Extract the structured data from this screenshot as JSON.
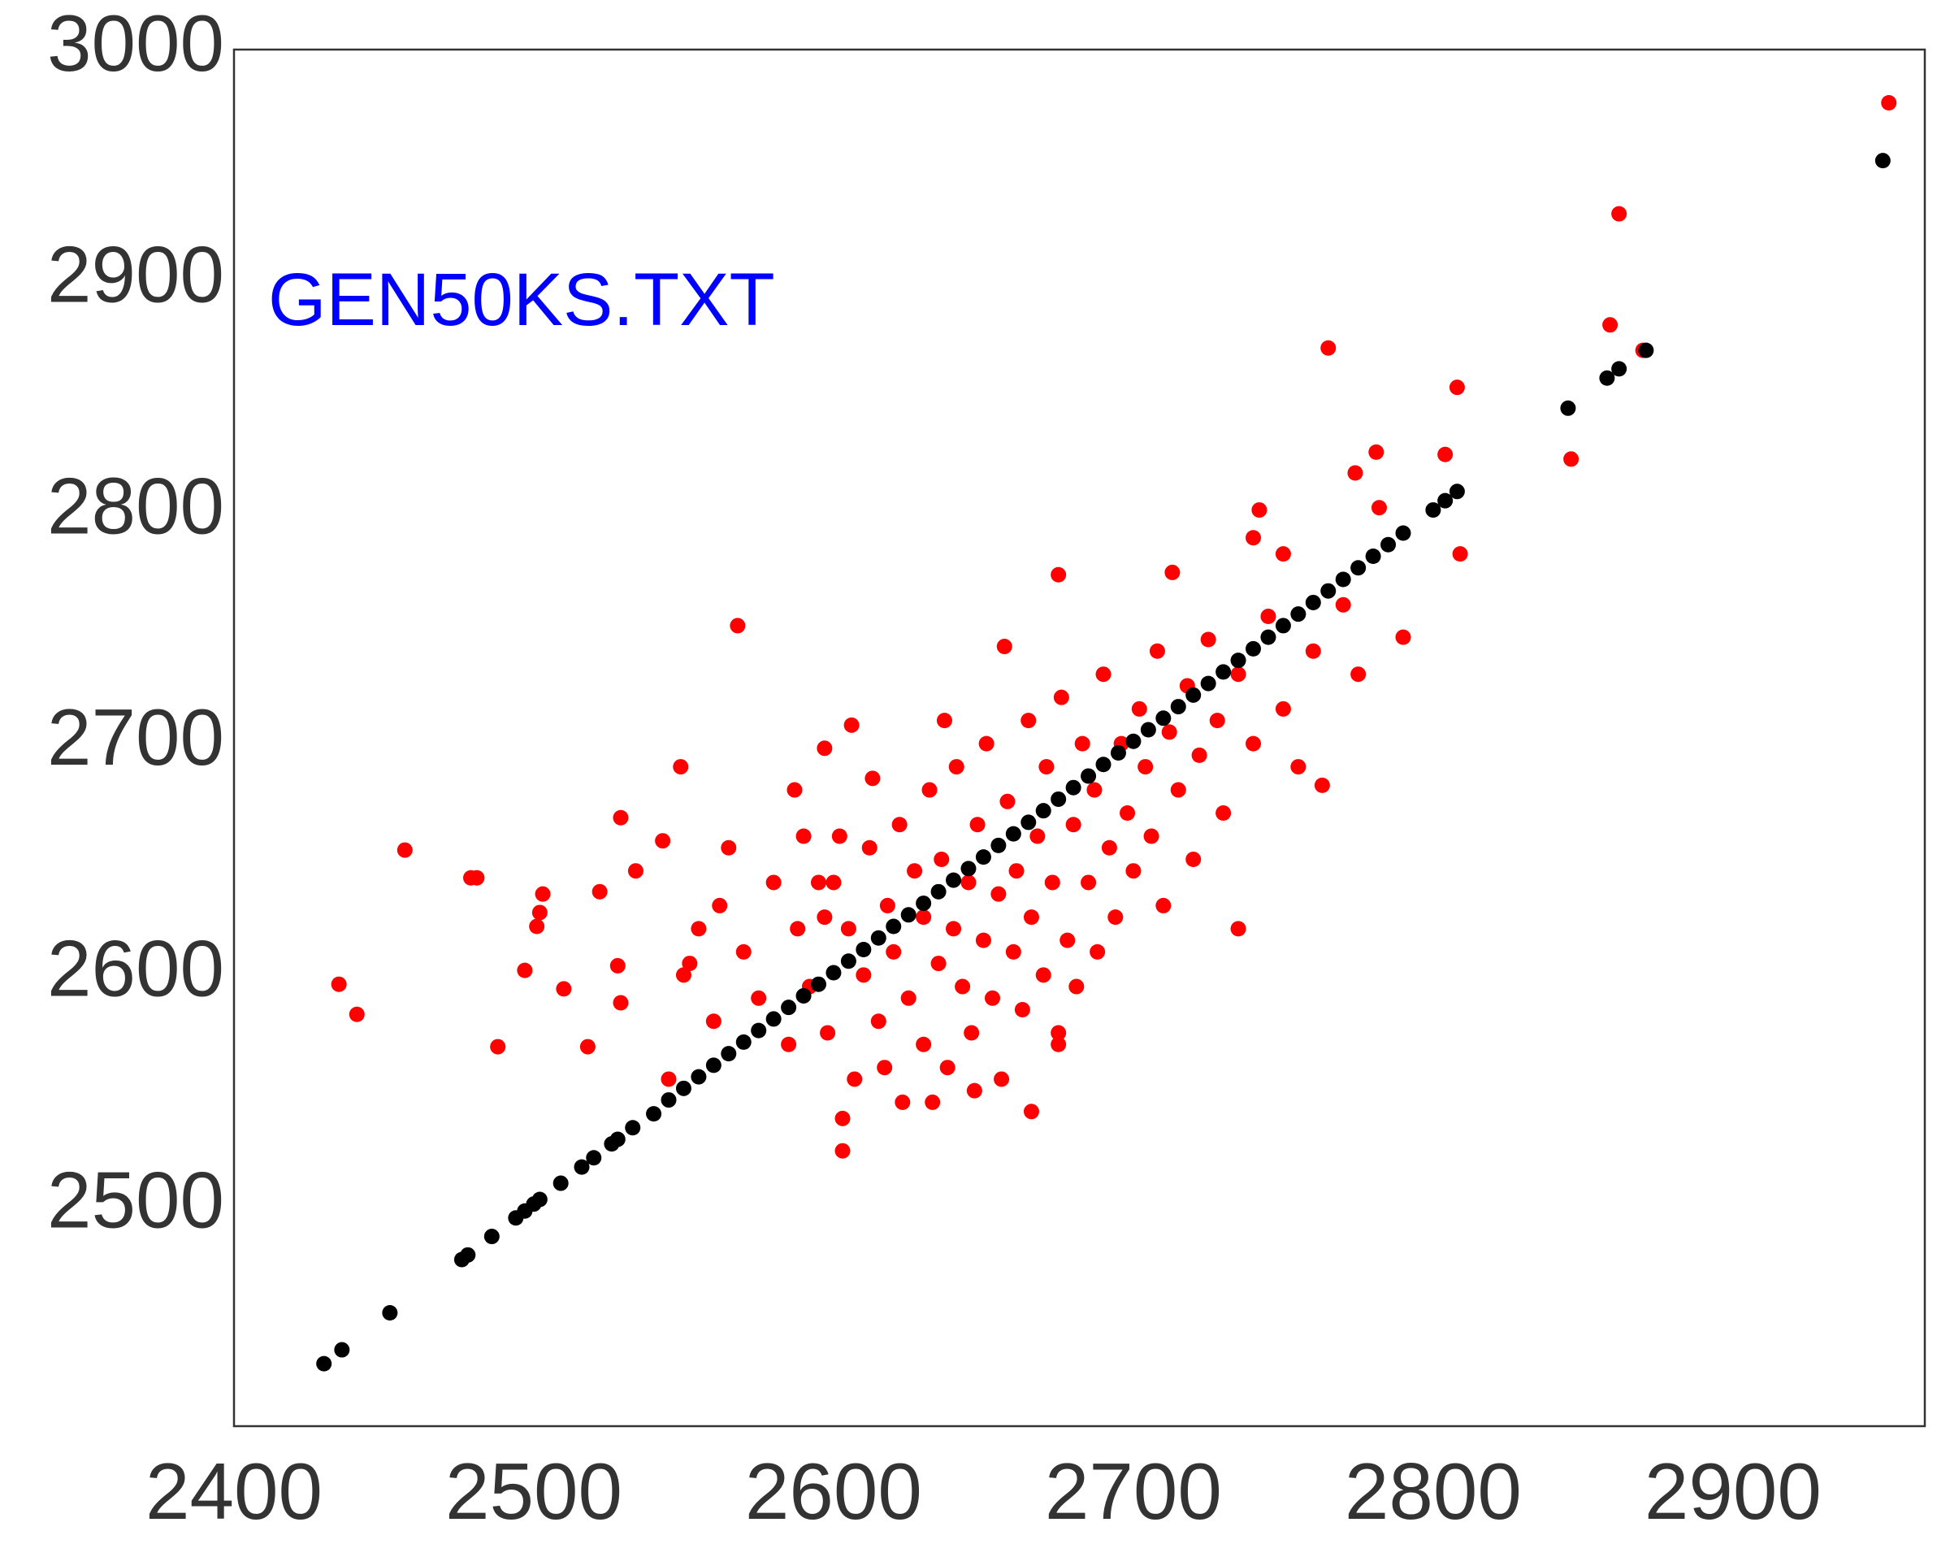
{
  "chart_data": {
    "type": "scatter",
    "annotation": "GEN50KS.TXT",
    "xlim": [
      2400,
      2964
    ],
    "ylim": [
      2405,
      3000
    ],
    "xticks": [
      2400,
      2500,
      2600,
      2700,
      2800,
      2900
    ],
    "yticks": [
      2500,
      2600,
      2700,
      2800,
      2900,
      3000
    ],
    "grid": false,
    "series": [
      {
        "color": "#ff0000",
        "x": [
          2435,
          2441,
          2457,
          2479,
          2481,
          2488,
          2497,
          2501,
          2502,
          2503,
          2510,
          2518,
          2522,
          2528,
          2529,
          2529,
          2534,
          2543,
          2549,
          2568,
          2597,
          2606,
          2603,
          2603,
          2637,
          2765,
          2808,
          2804,
          2781,
          2774,
          2782,
          2809,
          2790,
          2763,
          2735,
          2742,
          2740,
          2750,
          2846,
          2859,
          2862,
          2870,
          2952,
          2675,
          2713,
          2666,
          2675,
          2657,
          2600,
          2605,
          2610,
          2612,
          2615,
          2618,
          2620,
          2622,
          2625,
          2627,
          2630,
          2630,
          2632,
          2635,
          2636,
          2638,
          2640,
          2641,
          2643,
          2645,
          2646,
          2648,
          2650,
          2651,
          2653,
          2655,
          2656,
          2658,
          2660,
          2661,
          2663,
          2665,
          2666,
          2668,
          2670,
          2671,
          2673,
          2675,
          2676,
          2678,
          2680,
          2681,
          2683,
          2685,
          2687,
          2688,
          2690,
          2692,
          2694,
          2696,
          2698,
          2700,
          2702,
          2704,
          2706,
          2708,
          2710,
          2712,
          2715,
          2718,
          2720,
          2722,
          2725,
          2728,
          2730,
          2735,
          2740,
          2745,
          2750,
          2755,
          2760,
          2770,
          2775,
          2550,
          2555,
          2560,
          2565,
          2570,
          2575,
          2580,
          2585,
          2588,
          2590,
          2592,
          2595,
          2598,
          2602,
          2607,
          2613,
          2617,
          2623,
          2633,
          2647,
          2587,
          2597,
          2545,
          2552,
          2562
        ],
        "values": [
          2596,
          2583,
          2654,
          2642,
          2642,
          2569,
          2602,
          2621,
          2627,
          2635,
          2594,
          2569,
          2636,
          2604,
          2588,
          2668,
          2645,
          2658,
          2690,
          2751,
          2698,
          2708,
          2524,
          2538,
          2710,
          2871,
          2854,
          2825,
          2826,
          2817,
          2802,
          2782,
          2746,
          2682,
          2620,
          2801,
          2789,
          2782,
          2823,
          2881,
          2929,
          2870,
          2977,
          2773,
          2774,
          2541,
          2570,
          2742,
          2640,
          2620,
          2600,
          2655,
          2580,
          2630,
          2610,
          2665,
          2590,
          2645,
          2570,
          2625,
          2680,
          2605,
          2650,
          2560,
          2620,
          2690,
          2595,
          2640,
          2575,
          2665,
          2615,
          2700,
          2590,
          2635,
          2555,
          2675,
          2610,
          2645,
          2585,
          2710,
          2625,
          2660,
          2600,
          2690,
          2640,
          2575,
          2720,
          2615,
          2665,
          2595,
          2700,
          2640,
          2680,
          2610,
          2730,
          2655,
          2625,
          2700,
          2670,
          2645,
          2715,
          2690,
          2660,
          2740,
          2630,
          2705,
          2680,
          2725,
          2650,
          2695,
          2745,
          2710,
          2670,
          2730,
          2700,
          2755,
          2715,
          2690,
          2740,
          2760,
          2730,
          2600,
          2620,
          2580,
          2655,
          2610,
          2590,
          2640,
          2570,
          2620,
          2660,
          2595,
          2640,
          2575,
          2660,
          2555,
          2685,
          2560,
          2545,
          2545,
          2550,
          2680,
          2625,
          2555,
          2605,
          2630
        ]
      },
      {
        "color": "#000000",
        "x": [
          2430,
          2436,
          2452,
          2476,
          2478,
          2486,
          2494,
          2497,
          2500,
          2502,
          2509,
          2516,
          2520,
          2526,
          2528,
          2533,
          2540,
          2545,
          2550,
          2555,
          2560,
          2565,
          2570,
          2575,
          2580,
          2585,
          2590,
          2595,
          2600,
          2605,
          2610,
          2615,
          2620,
          2625,
          2630,
          2635,
          2640,
          2645,
          2650,
          2655,
          2660,
          2665,
          2670,
          2675,
          2680,
          2685,
          2690,
          2695,
          2700,
          2705,
          2710,
          2715,
          2720,
          2725,
          2730,
          2735,
          2740,
          2745,
          2750,
          2755,
          2760,
          2765,
          2770,
          2775,
          2780,
          2785,
          2790,
          2800,
          2804,
          2808,
          2845,
          2858,
          2862,
          2871,
          2950
        ],
        "values": [
          2432,
          2438,
          2454,
          2477,
          2479,
          2487,
          2495,
          2498,
          2501,
          2503,
          2510,
          2517,
          2521,
          2527,
          2529,
          2534,
          2540,
          2546,
          2551,
          2556,
          2561,
          2566,
          2571,
          2576,
          2581,
          2586,
          2591,
          2596,
          2601,
          2606,
          2611,
          2616,
          2621,
          2626,
          2631,
          2636,
          2641,
          2646,
          2651,
          2656,
          2661,
          2666,
          2671,
          2676,
          2681,
          2686,
          2691,
          2696,
          2701,
          2706,
          2711,
          2716,
          2721,
          2726,
          2731,
          2736,
          2741,
          2746,
          2751,
          2756,
          2761,
          2766,
          2771,
          2776,
          2781,
          2786,
          2791,
          2801,
          2805,
          2809,
          2845,
          2858,
          2862,
          2870,
          2952
        ]
      }
    ]
  }
}
